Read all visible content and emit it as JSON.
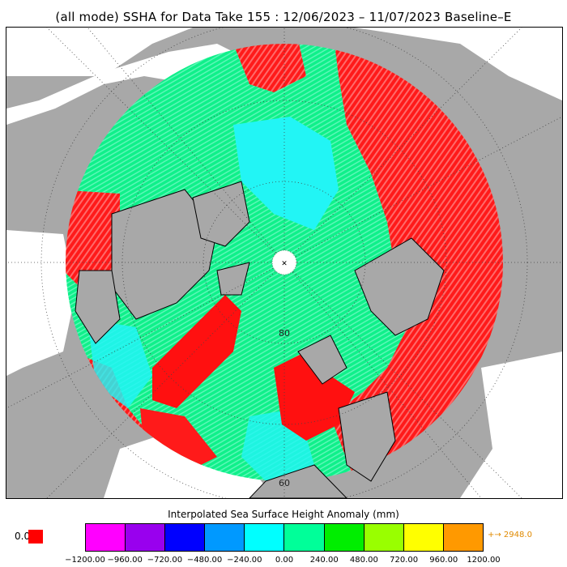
{
  "title": "(all mode) SSHA for Data Take 155 : 12/06/2023 – 11/07/2023 Baseline–E",
  "map": {
    "projection": "north-polar-stereographic",
    "land_color": "#a8a8a8",
    "missing_color": "#ffffff",
    "lat_labels": [
      "80",
      "60"
    ],
    "pole_marker": "✕"
  },
  "colorbar": {
    "title": "Interpolated Sea Surface Height Anomaly (mm)",
    "colors": [
      "#ff00ff",
      "#9900ee",
      "#0000ff",
      "#0099ff",
      "#00ffff",
      "#00ff99",
      "#00ee00",
      "#99ff00",
      "#ffff00",
      "#ff9900"
    ],
    "ticks": [
      "−1200.00",
      "−960.00",
      "−720.00",
      "−480.00",
      "−240.00",
      "0.00",
      "240.00",
      "480.00",
      "720.00",
      "960.00",
      "1200.00"
    ],
    "under_label": "0.0",
    "under_color": "#ff0000",
    "over_label": "+→ 2948.0"
  }
}
